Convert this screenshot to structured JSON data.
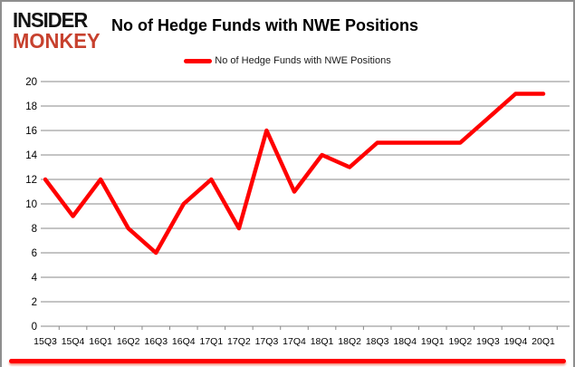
{
  "logo": {
    "line1": "INSIDER",
    "line2": "MONKEY"
  },
  "header": {
    "title": "No of Hedge Funds with NWE Positions"
  },
  "legend": {
    "label": "No of Hedge Funds with NWE Positions",
    "marker_color": "#ff0000"
  },
  "colors": {
    "line": "#ff0000",
    "grid": "#898989",
    "axis": "#898989",
    "tick_text": "#000000",
    "border": "#8e8e8e",
    "bottom_bar": "#ff0000",
    "logo_black": "#141414",
    "logo_red": "#c7412e",
    "background": "#ffffff"
  },
  "chart_data": {
    "type": "line",
    "title": "No of Hedge Funds with NWE Positions",
    "categories": [
      "15Q3",
      "15Q4",
      "16Q1",
      "16Q2",
      "16Q3",
      "16Q4",
      "17Q1",
      "17Q2",
      "17Q3",
      "17Q4",
      "18Q1",
      "18Q2",
      "18Q3",
      "18Q4",
      "19Q1",
      "19Q2",
      "19Q3",
      "19Q4",
      "20Q1"
    ],
    "series": [
      {
        "name": "No of Hedge Funds with NWE Positions",
        "color": "#ff0000",
        "values": [
          12,
          9,
          12,
          8,
          6,
          10,
          12,
          8,
          16,
          11,
          14,
          13,
          15,
          15,
          15,
          15,
          17,
          19,
          19
        ]
      }
    ],
    "xlabel": "",
    "ylabel": "",
    "ylim": [
      0,
      20
    ],
    "ytick_step": 2,
    "yticks": [
      0,
      2,
      4,
      6,
      8,
      10,
      12,
      14,
      16,
      18,
      20
    ],
    "grid": true,
    "legend_position": "top"
  }
}
